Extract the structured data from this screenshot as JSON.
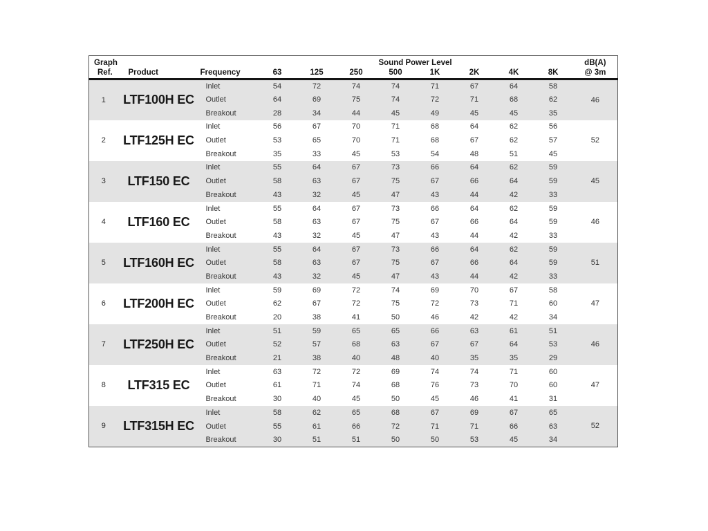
{
  "colors": {
    "band_gray": "#e3e3e3",
    "border": "#4f4f4f",
    "header_rule": "#141414",
    "text": "#2e2e2e"
  },
  "header": {
    "graph_line1": "Graph",
    "graph_line2": "Ref.",
    "product": "Product",
    "frequency": "Frequency",
    "sound_power_level": "Sound Power Level",
    "freq_cols": [
      "63",
      "125",
      "250",
      "500",
      "1K",
      "2K",
      "4K",
      "8K"
    ],
    "dba_line1": "dB(A)",
    "dba_line2": "@ 3m"
  },
  "rows": [
    {
      "ref": "1",
      "product": "LTF100H EC",
      "dba": "46",
      "measurements": [
        {
          "label": "Inlet",
          "values": [
            54,
            72,
            74,
            74,
            71,
            67,
            64,
            58
          ]
        },
        {
          "label": "Outlet",
          "values": [
            64,
            69,
            75,
            74,
            72,
            71,
            68,
            62
          ]
        },
        {
          "label": "Breakout",
          "values": [
            28,
            34,
            44,
            45,
            49,
            45,
            45,
            35
          ]
        }
      ]
    },
    {
      "ref": "2",
      "product": "LTF125H EC",
      "dba": "52",
      "measurements": [
        {
          "label": "Inlet",
          "values": [
            56,
            67,
            70,
            71,
            68,
            64,
            62,
            56
          ]
        },
        {
          "label": "Outlet",
          "values": [
            53,
            65,
            70,
            71,
            68,
            67,
            62,
            57
          ]
        },
        {
          "label": "Breakout",
          "values": [
            35,
            33,
            45,
            53,
            54,
            48,
            51,
            45
          ]
        }
      ]
    },
    {
      "ref": "3",
      "product": "LTF150 EC",
      "dba": "45",
      "measurements": [
        {
          "label": "Inlet",
          "values": [
            55,
            64,
            67,
            73,
            66,
            64,
            62,
            59
          ]
        },
        {
          "label": "Outlet",
          "values": [
            58,
            63,
            67,
            75,
            67,
            66,
            64,
            59
          ]
        },
        {
          "label": "Breakout",
          "values": [
            43,
            32,
            45,
            47,
            43,
            44,
            42,
            33
          ]
        }
      ]
    },
    {
      "ref": "4",
      "product": "LTF160 EC",
      "dba": "46",
      "measurements": [
        {
          "label": "Inlet",
          "values": [
            55,
            64,
            67,
            73,
            66,
            64,
            62,
            59
          ]
        },
        {
          "label": "Outlet",
          "values": [
            58,
            63,
            67,
            75,
            67,
            66,
            64,
            59
          ]
        },
        {
          "label": "Breakout",
          "values": [
            43,
            32,
            45,
            47,
            43,
            44,
            42,
            33
          ]
        }
      ]
    },
    {
      "ref": "5",
      "product": "LTF160H EC",
      "dba": "51",
      "measurements": [
        {
          "label": "Inlet",
          "values": [
            55,
            64,
            67,
            73,
            66,
            64,
            62,
            59
          ]
        },
        {
          "label": "Outlet",
          "values": [
            58,
            63,
            67,
            75,
            67,
            66,
            64,
            59
          ]
        },
        {
          "label": "Breakout",
          "values": [
            43,
            32,
            45,
            47,
            43,
            44,
            42,
            33
          ]
        }
      ]
    },
    {
      "ref": "6",
      "product": "LTF200H EC",
      "dba": "47",
      "measurements": [
        {
          "label": "Inlet",
          "values": [
            59,
            69,
            72,
            74,
            69,
            70,
            67,
            58
          ]
        },
        {
          "label": "Outlet",
          "values": [
            62,
            67,
            72,
            75,
            72,
            73,
            71,
            60
          ]
        },
        {
          "label": "Breakout",
          "values": [
            20,
            38,
            41,
            50,
            46,
            42,
            42,
            34
          ]
        }
      ]
    },
    {
      "ref": "7",
      "product": "LTF250H EC",
      "dba": "46",
      "measurements": [
        {
          "label": "Inlet",
          "values": [
            51,
            59,
            65,
            65,
            66,
            63,
            61,
            51
          ]
        },
        {
          "label": "Outlet",
          "values": [
            52,
            57,
            68,
            63,
            67,
            67,
            64,
            53
          ]
        },
        {
          "label": "Breakout",
          "values": [
            21,
            38,
            40,
            48,
            40,
            35,
            35,
            29
          ]
        }
      ]
    },
    {
      "ref": "8",
      "product": "LTF315 EC",
      "dba": "47",
      "measurements": [
        {
          "label": "Inlet",
          "values": [
            63,
            72,
            72,
            69,
            74,
            74,
            71,
            60
          ]
        },
        {
          "label": "Outlet",
          "values": [
            61,
            71,
            74,
            68,
            76,
            73,
            70,
            60
          ]
        },
        {
          "label": "Breakout",
          "values": [
            30,
            40,
            45,
            50,
            45,
            46,
            41,
            31
          ]
        }
      ]
    },
    {
      "ref": "9",
      "product": "LTF315H EC",
      "dba": "52",
      "measurements": [
        {
          "label": "Inlet",
          "values": [
            58,
            62,
            65,
            68,
            67,
            69,
            67,
            65
          ]
        },
        {
          "label": "Outlet",
          "values": [
            55,
            61,
            66,
            72,
            71,
            71,
            66,
            63
          ]
        },
        {
          "label": "Breakout",
          "values": [
            30,
            51,
            51,
            50,
            50,
            53,
            45,
            34
          ]
        }
      ]
    }
  ]
}
